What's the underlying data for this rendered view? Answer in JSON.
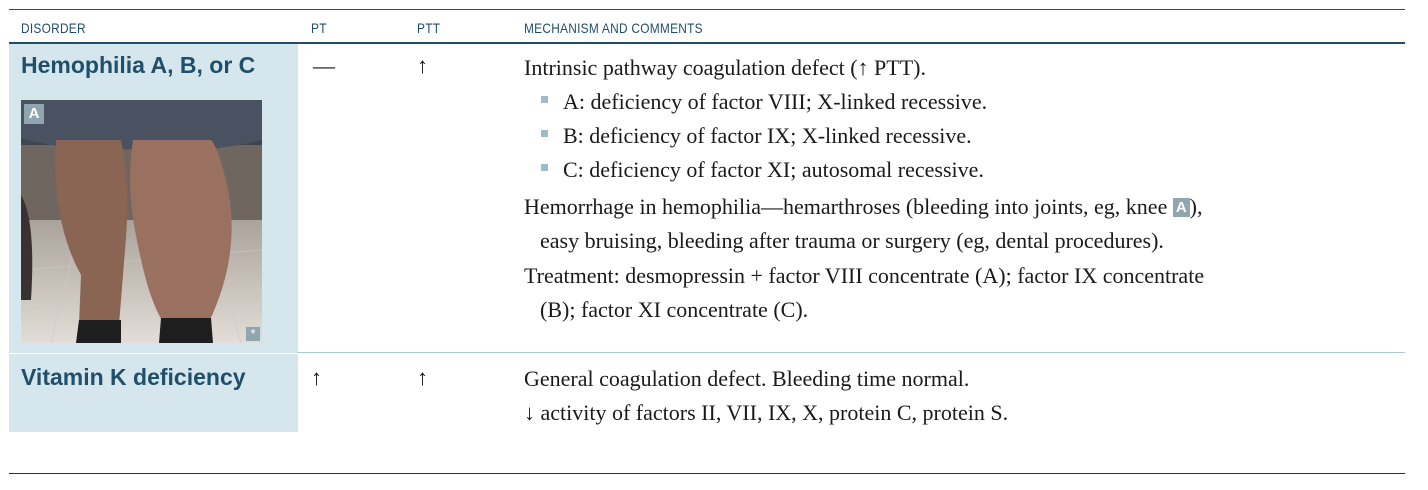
{
  "header": {
    "disorder": "DISORDER",
    "pt": "PT",
    "ptt": "PTT",
    "mechanism": "MECHANISM AND COMMENTS"
  },
  "rows": [
    {
      "disorder": "Hemophilia A, B, or C",
      "pt": "—",
      "ptt": "↑",
      "image_label": "A",
      "image_mark": "*",
      "lines": [
        "Intrinsic pathway coagulation defect (↑ PTT).",
        "A: deficiency of factor VIII; X-linked recessive.",
        "B: deficiency of factor IX; X-linked recessive.",
        "C: deficiency of factor XI; autosomal recessive.",
        "Hemorrhage in hemophilia—hemarthroses (bleeding into joints, eg, knee",
        "A",
        "),",
        "easy bruising, bleeding after trauma or surgery (eg, dental procedures).",
        "Treatment: desmopressin + factor VIII concentrate (A); factor IX concentrate",
        "(B); factor XI concentrate (C)."
      ]
    },
    {
      "disorder": "Vitamin K deficiency",
      "pt": "↑",
      "ptt": "↑",
      "lines": [
        "General coagulation defect. Bleeding time normal.",
        "↓ activity of factors II, VII, IX, X, protein C, protein S."
      ]
    }
  ],
  "colors": {
    "header_text": "#1f4f6a",
    "disorder_cell_bg": "#d5e7ec",
    "badge_bg": "#8fa6b0",
    "bullet": "#9bbcc8"
  },
  "icons": {
    "bullet": "square-bullet-icon"
  }
}
